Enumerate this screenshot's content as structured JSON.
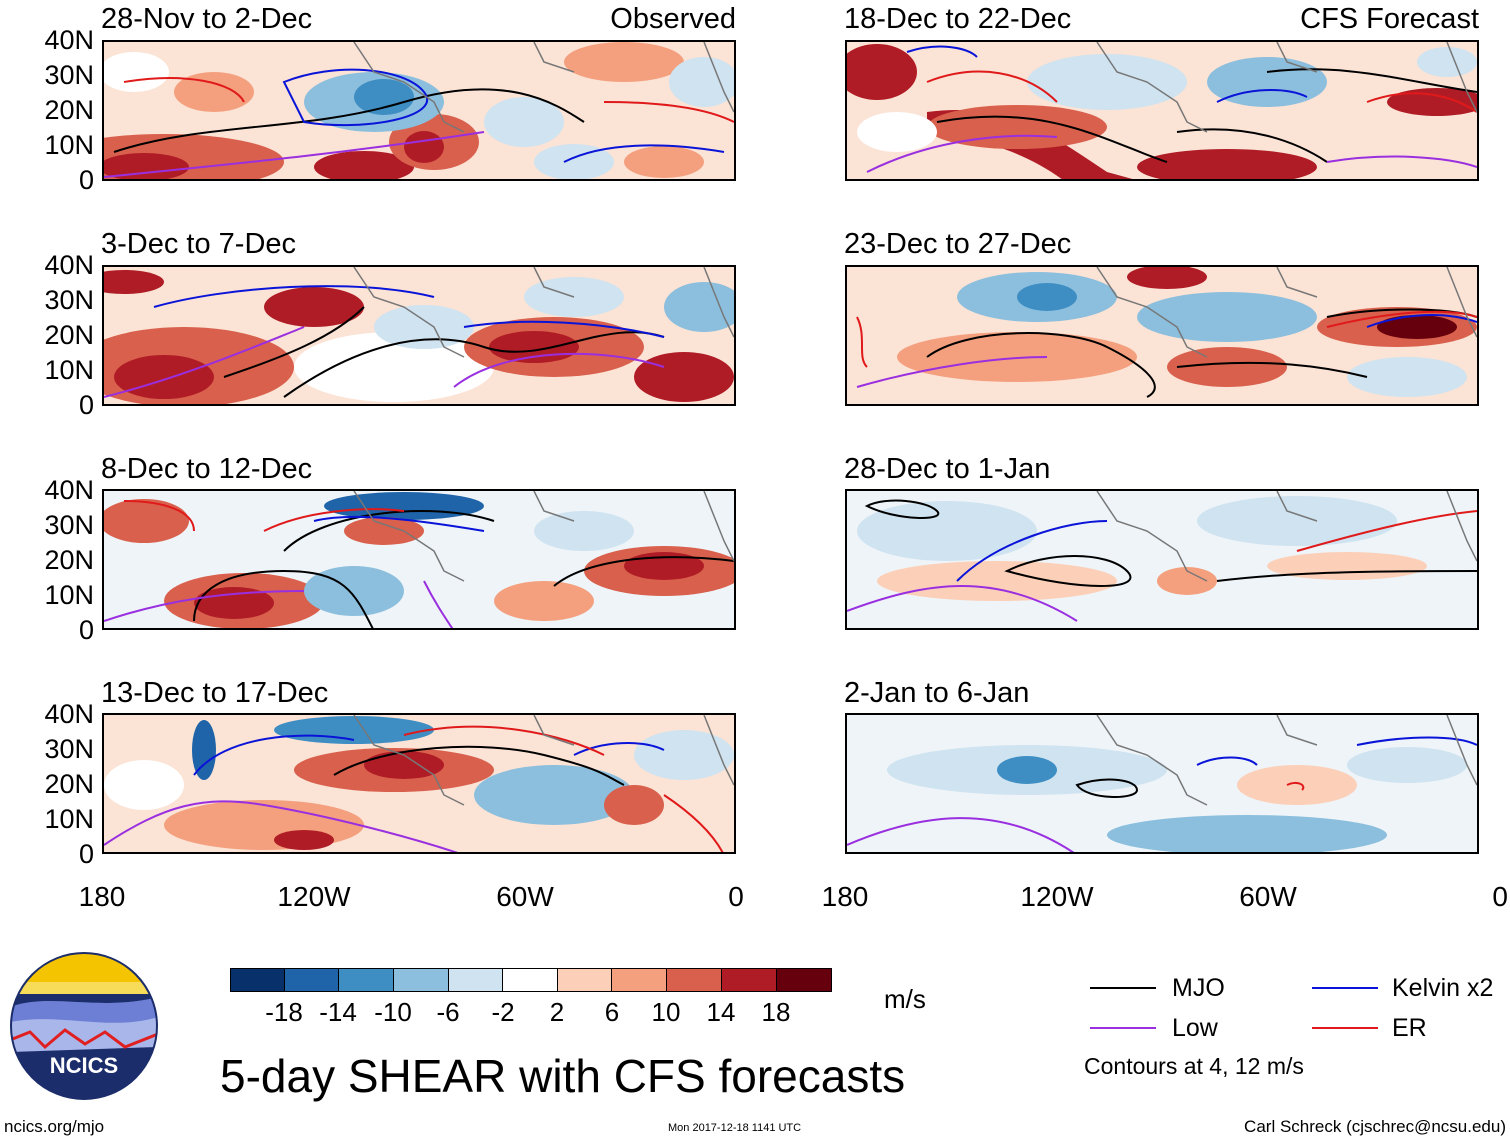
{
  "panels_observed": [
    {
      "title": "28-Nov to 2-Dec",
      "tag": "Observed"
    },
    {
      "title": "3-Dec to 7-Dec",
      "tag": ""
    },
    {
      "title": "8-Dec to 12-Dec",
      "tag": ""
    },
    {
      "title": "13-Dec to 17-Dec",
      "tag": ""
    }
  ],
  "panels_forecast": [
    {
      "title": "18-Dec to 22-Dec",
      "tag": "CFS Forecast"
    },
    {
      "title": "23-Dec to 27-Dec",
      "tag": ""
    },
    {
      "title": "28-Dec to 1-Jan",
      "tag": ""
    },
    {
      "title": "2-Jan to 6-Jan",
      "tag": ""
    }
  ],
  "y_ticks": [
    "40N",
    "30N",
    "20N",
    "10N",
    "0"
  ],
  "x_ticks": [
    "180",
    "120W",
    "60W",
    "0"
  ],
  "colorbar": {
    "labels": [
      "-18",
      "-14",
      "-10",
      "-6",
      "-2",
      "2",
      "6",
      "10",
      "14",
      "18"
    ],
    "colors": [
      "#08306b",
      "#1f63a8",
      "#3e8ec4",
      "#8cbfdd",
      "#cfe3f0",
      "#ffffff",
      "#fcd0b8",
      "#f4a07e",
      "#d9604c",
      "#b01c26",
      "#67000d"
    ],
    "units": "m/s"
  },
  "legend": {
    "items": [
      {
        "label": "MJO",
        "color": "#000000"
      },
      {
        "label": "Kelvin x2",
        "color": "#0a14d8"
      },
      {
        "label": "Low",
        "color": "#9a2fe0"
      },
      {
        "label": "ER",
        "color": "#e01a1a"
      }
    ],
    "note": "Contours at 4, 12 m/s"
  },
  "main_title": "5-day SHEAR with CFS forecasts",
  "logo_text": "NCICS",
  "footer": {
    "left": "ncics.org/mjo",
    "center": "Mon 2017-12-18 1141 UTC",
    "right": "Carl Schreck (cjschrec@ncsu.edu)"
  }
}
